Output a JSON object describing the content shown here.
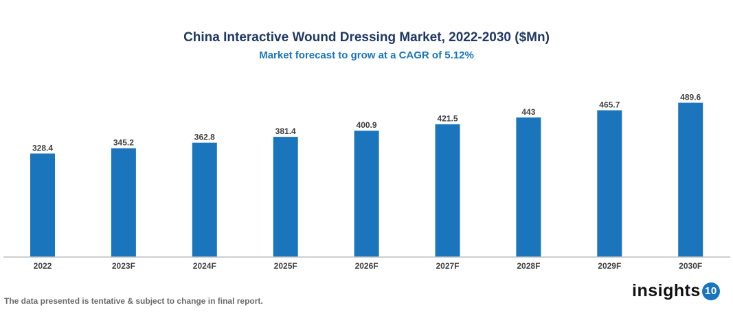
{
  "chart_data": {
    "type": "bar",
    "title": "China Interactive Wound Dressing Market, 2022-2030 ($Mn)",
    "subtitle": "Market forecast to grow at a CAGR of 5.12%",
    "categories": [
      "2022",
      "2023F",
      "2024F",
      "2025F",
      "2026F",
      "2027F",
      "2028F",
      "2029F",
      "2030F"
    ],
    "values": [
      328.4,
      345.2,
      362.8,
      381.4,
      400.9,
      421.5,
      443,
      465.7,
      489.6
    ],
    "value_labels": [
      "328.4",
      "345.2",
      "362.8",
      "381.4",
      "400.9",
      "421.5",
      "443",
      "465.7",
      "489.6"
    ],
    "ylim": [
      0,
      520
    ],
    "grid": false,
    "bar_color": "#1a75bc"
  },
  "footer": {
    "note": "The data presented is tentative & subject to change in final report."
  },
  "logo": {
    "text": "insights",
    "badge": "10"
  }
}
